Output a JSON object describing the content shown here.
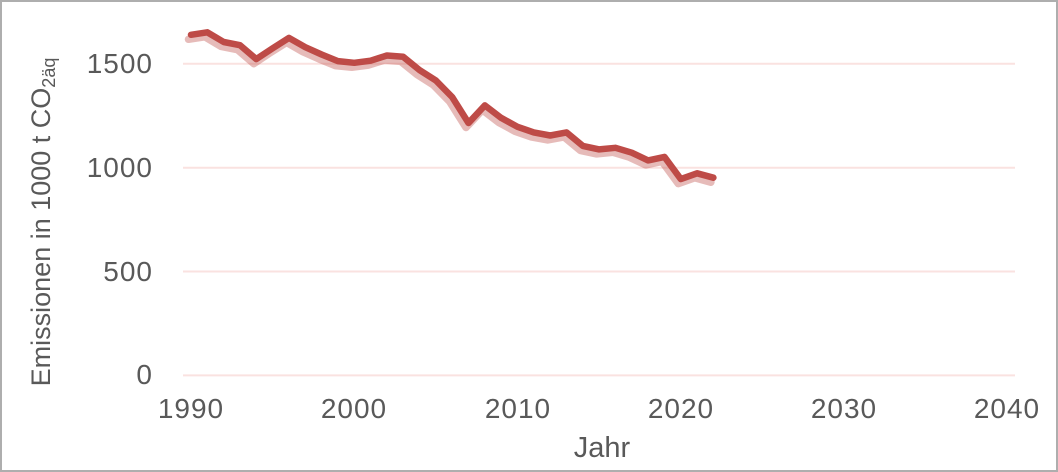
{
  "chart_data": {
    "type": "line",
    "title": "",
    "xlabel": "Jahr",
    "ylabel": "Emissionen in 1000 t CO2äq",
    "ylabel_main": "Emissionen in 1000 t CO",
    "ylabel_subscript": "2äq",
    "x": [
      1990,
      1991,
      1992,
      1993,
      1994,
      1995,
      1996,
      1997,
      1998,
      1999,
      2000,
      2001,
      2002,
      2003,
      2004,
      2005,
      2006,
      2007,
      2008,
      2009,
      2010,
      2011,
      2012,
      2013,
      2014,
      2015,
      2016,
      2017,
      2018,
      2019,
      2020,
      2021,
      2022
    ],
    "series": [
      {
        "name": "Emissionen",
        "values": [
          1640,
          1652,
          1605,
          1590,
          1523,
          1575,
          1625,
          1580,
          1545,
          1513,
          1505,
          1515,
          1540,
          1534,
          1470,
          1420,
          1340,
          1215,
          1300,
          1240,
          1197,
          1170,
          1155,
          1170,
          1105,
          1088,
          1096,
          1072,
          1035,
          1052,
          945,
          973,
          952
        ]
      }
    ],
    "x_ticks": [
      1990,
      2000,
      2010,
      2020,
      2030,
      2040
    ],
    "y_ticks": [
      0,
      500,
      1000,
      1500
    ],
    "xlim": [
      1989.5,
      2040.5
    ],
    "ylim": [
      0,
      1750
    ],
    "grid": "horizontal-only",
    "legend": "none",
    "colors": {
      "line": "#BE4B47",
      "line_shadow": "rgba(190,75,71,0.38)",
      "gridline": "#FAE2E0",
      "text": "#595959",
      "frame_border": "#AEAEAE",
      "background": "#FFFFFF"
    }
  }
}
